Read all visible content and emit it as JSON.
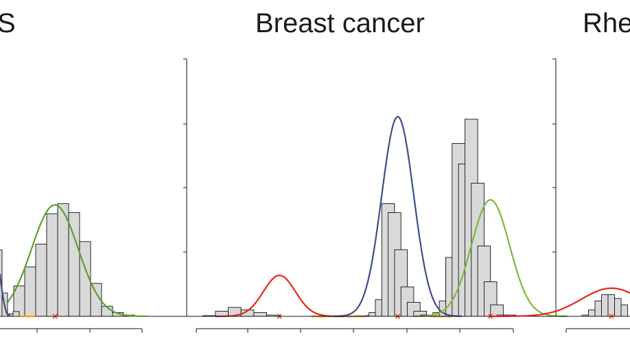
{
  "panels": [
    {
      "title_fragment": "S"
    },
    {
      "title": "Breast cancer"
    },
    {
      "title_fragment": "Rhe"
    }
  ],
  "chart_data": [
    {
      "type": "bar",
      "title": "S",
      "note": "partially visible histogram with fitted normal curves",
      "bins": [
        0.62,
        0.7,
        0.78,
        0.86,
        0.94,
        1.02,
        1.1,
        1.18,
        1.26,
        1.34,
        1.42,
        1.5
      ],
      "values": [
        2,
        24,
        39,
        57,
        81,
        89,
        82,
        59,
        26,
        8,
        3,
        1
      ],
      "curves": [
        {
          "color": "#5a9e2d",
          "mean": 1.0,
          "sd": 0.17,
          "peak": 88
        }
      ],
      "markers": [
        1.0
      ],
      "colors": {
        "bar_fill": "#d9d9d9",
        "bar_edge": "#111111",
        "connector": "#f0a020"
      }
    },
    {
      "type": "bar",
      "title": "Breast cancer",
      "note": "histogram with fitted normal curves",
      "bins": [
        0.2,
        0.6,
        1.0,
        1.4,
        1.8,
        2.2,
        2.6,
        3.0,
        3.4,
        3.8,
        4.2,
        4.6,
        5.0,
        5.4,
        5.6,
        5.8,
        6.0,
        6.2,
        6.4,
        6.6,
        6.8,
        7.0,
        7.2,
        7.4,
        7.6,
        7.8,
        8.0,
        8.2,
        8.4,
        8.6,
        8.8,
        9.0,
        9.2,
        9.4,
        9.6
      ],
      "values": [
        0.5,
        4,
        7,
        5,
        3,
        1,
        0,
        0,
        0,
        0,
        0,
        0,
        0.5,
        3,
        13,
        88,
        81,
        52,
        23,
        11,
        4,
        1,
        0,
        3,
        12,
        46,
        135,
        119,
        154,
        104,
        55,
        27,
        9,
        1,
        1
      ],
      "curves": [
        {
          "color": "#e8231a",
          "mean": 2.6,
          "sd": 0.5,
          "peak": 32
        },
        {
          "color": "#3c4c8c",
          "mean": 6.3,
          "sd": 0.5,
          "peak": 156
        },
        {
          "color": "#7ab83a",
          "mean": 9.2,
          "sd": 0.6,
          "peak": 91
        }
      ],
      "markers": [
        2.6,
        6.3,
        9.2
      ],
      "connectors": [
        [
          3.6,
          5.3
        ],
        [
          7.3,
          8.0
        ]
      ],
      "colors": {
        "bar_fill": "#d9d9d9",
        "bar_edge": "#111111",
        "connector": "#f0a020",
        "marker": "#e8231a"
      }
    },
    {
      "type": "bar",
      "title": "Rhe",
      "note": "partially visible histogram",
      "values": [
        1,
        5,
        12,
        17,
        17,
        14,
        9
      ],
      "curves": [
        {
          "color": "#e8231a",
          "mean": 3.3,
          "sd": 0.8,
          "peak": 22
        }
      ],
      "markers": [
        3.3
      ]
    }
  ]
}
